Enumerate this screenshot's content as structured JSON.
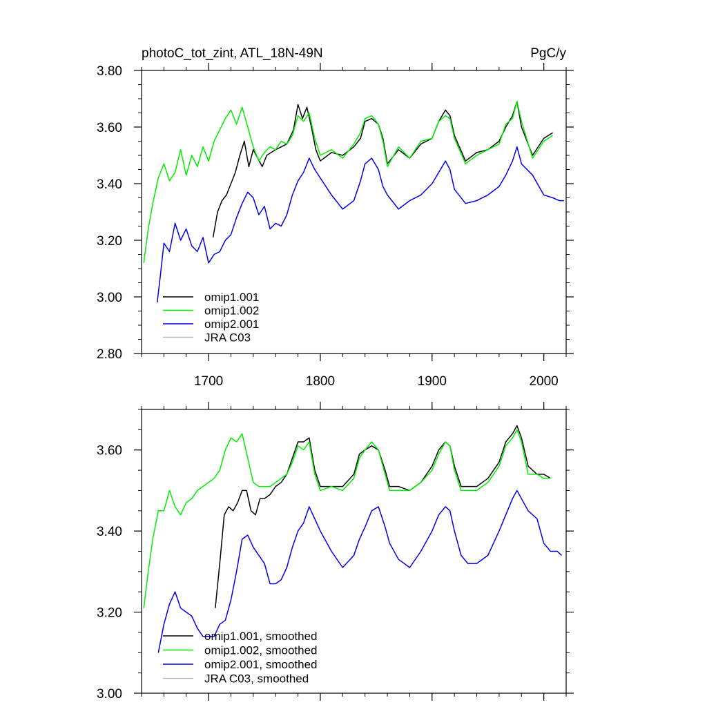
{
  "chart_data": [
    {
      "type": "line",
      "title_left": "photoC_tot_zint, ATL_18N-49N",
      "title_right": "PgC/y",
      "xlabel": "",
      "ylabel": "",
      "xlim": [
        1640,
        2020
      ],
      "ylim": [
        2.8,
        3.8
      ],
      "x_ticks": [
        1700,
        1800,
        1900,
        2000
      ],
      "x_tick_labels": [
        "1700",
        "1800",
        "1900",
        "2000"
      ],
      "y_ticks": [
        2.8,
        3.0,
        3.2,
        3.4,
        3.6,
        3.8
      ],
      "y_tick_labels": [
        "2.80",
        "3.00",
        "3.20",
        "3.40",
        "3.60",
        "3.80"
      ],
      "legend_position": "bottom-left",
      "legend": [
        {
          "label": "omip1.001",
          "color": "#000000"
        },
        {
          "label": "omip1.002",
          "color": "#00ee00"
        },
        {
          "label": "omip2.001",
          "color": "#0000ee"
        },
        {
          "label": "JRA C03",
          "color": "#bbbbbb"
        }
      ],
      "series": [
        {
          "name": "omip1.001",
          "color": "#000000",
          "x": [
            1704,
            1708,
            1712,
            1716,
            1720,
            1724,
            1728,
            1732,
            1736,
            1740,
            1744,
            1748,
            1752,
            1760,
            1770,
            1776,
            1780,
            1784,
            1788,
            1792,
            1796,
            1800,
            1810,
            1820,
            1830,
            1836,
            1840,
            1846,
            1852,
            1856,
            1860,
            1870,
            1880,
            1890,
            1900,
            1906,
            1912,
            1916,
            1920,
            1930,
            1940,
            1950,
            1960,
            1966,
            1972,
            1976,
            1980,
            1990,
            2000,
            2008
          ],
          "y": [
            3.21,
            3.3,
            3.34,
            3.36,
            3.4,
            3.44,
            3.5,
            3.55,
            3.46,
            3.52,
            3.49,
            3.46,
            3.5,
            3.52,
            3.54,
            3.59,
            3.68,
            3.63,
            3.67,
            3.6,
            3.52,
            3.48,
            3.51,
            3.5,
            3.53,
            3.56,
            3.62,
            3.63,
            3.61,
            3.56,
            3.47,
            3.52,
            3.49,
            3.54,
            3.56,
            3.62,
            3.66,
            3.64,
            3.57,
            3.48,
            3.51,
            3.52,
            3.55,
            3.6,
            3.64,
            3.69,
            3.6,
            3.5,
            3.56,
            3.58
          ]
        },
        {
          "name": "omip1.002",
          "color": "#00ee00",
          "x": [
            1642,
            1646,
            1650,
            1655,
            1660,
            1665,
            1670,
            1675,
            1680,
            1685,
            1690,
            1695,
            1700,
            1705,
            1710,
            1715,
            1720,
            1725,
            1730,
            1735,
            1740,
            1745,
            1750,
            1755,
            1760,
            1765,
            1770,
            1775,
            1780,
            1785,
            1790,
            1795,
            1800,
            1810,
            1820,
            1830,
            1836,
            1840,
            1846,
            1852,
            1856,
            1860,
            1870,
            1880,
            1890,
            1900,
            1906,
            1912,
            1916,
            1920,
            1930,
            1940,
            1950,
            1960,
            1966,
            1972,
            1976,
            1980,
            1990,
            2000,
            2008
          ],
          "y": [
            3.12,
            3.24,
            3.33,
            3.42,
            3.47,
            3.41,
            3.44,
            3.52,
            3.43,
            3.5,
            3.46,
            3.53,
            3.48,
            3.55,
            3.59,
            3.63,
            3.66,
            3.61,
            3.67,
            3.6,
            3.53,
            3.48,
            3.51,
            3.53,
            3.52,
            3.55,
            3.54,
            3.57,
            3.64,
            3.62,
            3.65,
            3.56,
            3.5,
            3.52,
            3.49,
            3.54,
            3.58,
            3.63,
            3.64,
            3.61,
            3.55,
            3.46,
            3.53,
            3.49,
            3.55,
            3.56,
            3.62,
            3.64,
            3.63,
            3.56,
            3.47,
            3.5,
            3.52,
            3.54,
            3.61,
            3.63,
            3.69,
            3.62,
            3.49,
            3.55,
            3.57
          ]
        },
        {
          "name": "omip2.001",
          "color": "#0000ee",
          "x": [
            1654,
            1657,
            1660,
            1665,
            1670,
            1675,
            1680,
            1685,
            1690,
            1695,
            1700,
            1705,
            1710,
            1715,
            1720,
            1725,
            1730,
            1735,
            1740,
            1745,
            1750,
            1755,
            1760,
            1765,
            1770,
            1775,
            1780,
            1785,
            1790,
            1795,
            1800,
            1810,
            1820,
            1830,
            1836,
            1840,
            1846,
            1852,
            1856,
            1860,
            1870,
            1880,
            1890,
            1900,
            1906,
            1912,
            1916,
            1920,
            1930,
            1940,
            1950,
            1960,
            1966,
            1972,
            1976,
            1980,
            1990,
            2000,
            2008,
            2014,
            2018
          ],
          "y": [
            2.98,
            3.08,
            3.19,
            3.16,
            3.26,
            3.2,
            3.24,
            3.18,
            3.16,
            3.21,
            3.12,
            3.15,
            3.16,
            3.2,
            3.22,
            3.28,
            3.33,
            3.37,
            3.35,
            3.29,
            3.32,
            3.24,
            3.26,
            3.25,
            3.29,
            3.36,
            3.41,
            3.44,
            3.49,
            3.45,
            3.42,
            3.36,
            3.31,
            3.34,
            3.41,
            3.47,
            3.49,
            3.45,
            3.39,
            3.36,
            3.31,
            3.34,
            3.36,
            3.4,
            3.44,
            3.48,
            3.45,
            3.38,
            3.33,
            3.34,
            3.36,
            3.39,
            3.43,
            3.48,
            3.53,
            3.47,
            3.43,
            3.36,
            3.35,
            3.34,
            3.34
          ]
        }
      ]
    },
    {
      "type": "line",
      "title_left": "",
      "title_right": "",
      "xlabel": "",
      "ylabel": "",
      "xlim": [
        1640,
        2020
      ],
      "ylim": [
        3.0,
        3.7
      ],
      "x_ticks": [
        1700,
        1800,
        1900,
        2000
      ],
      "x_tick_labels": [],
      "y_ticks": [
        3.0,
        3.2,
        3.4,
        3.6
      ],
      "y_tick_labels": [
        "3.00",
        "3.20",
        "3.40",
        "3.60"
      ],
      "legend_position": "bottom-left",
      "legend": [
        {
          "label": "omip1.001, smoothed",
          "color": "#000000"
        },
        {
          "label": "omip1.002, smoothed",
          "color": "#00ee00"
        },
        {
          "label": "omip2.001, smoothed",
          "color": "#0000ee"
        },
        {
          "label": "JRA C03, smoothed",
          "color": "#bbbbbb"
        }
      ],
      "series": [
        {
          "name": "omip1.001, smoothed",
          "color": "#000000",
          "x": [
            1706,
            1710,
            1714,
            1718,
            1722,
            1726,
            1730,
            1734,
            1738,
            1742,
            1746,
            1750,
            1755,
            1760,
            1765,
            1770,
            1775,
            1780,
            1785,
            1790,
            1795,
            1800,
            1810,
            1820,
            1830,
            1835,
            1840,
            1846,
            1852,
            1858,
            1862,
            1870,
            1880,
            1890,
            1900,
            1906,
            1912,
            1916,
            1920,
            1926,
            1932,
            1940,
            1950,
            1960,
            1966,
            1972,
            1976,
            1980,
            1986,
            1994,
            2000,
            2006
          ],
          "y": [
            3.21,
            3.32,
            3.44,
            3.46,
            3.45,
            3.47,
            3.5,
            3.5,
            3.45,
            3.44,
            3.48,
            3.48,
            3.49,
            3.51,
            3.52,
            3.54,
            3.58,
            3.62,
            3.62,
            3.63,
            3.55,
            3.51,
            3.51,
            3.51,
            3.54,
            3.59,
            3.6,
            3.61,
            3.6,
            3.55,
            3.51,
            3.51,
            3.5,
            3.52,
            3.56,
            3.6,
            3.62,
            3.61,
            3.56,
            3.51,
            3.51,
            3.51,
            3.53,
            3.57,
            3.62,
            3.64,
            3.66,
            3.63,
            3.56,
            3.54,
            3.54,
            3.53
          ]
        },
        {
          "name": "omip1.002, smoothed",
          "color": "#00ee00",
          "x": [
            1642,
            1646,
            1650,
            1655,
            1660,
            1665,
            1670,
            1675,
            1680,
            1685,
            1690,
            1695,
            1700,
            1705,
            1710,
            1715,
            1720,
            1725,
            1730,
            1735,
            1740,
            1745,
            1750,
            1755,
            1760,
            1765,
            1770,
            1775,
            1780,
            1785,
            1790,
            1795,
            1800,
            1810,
            1820,
            1830,
            1835,
            1840,
            1846,
            1852,
            1858,
            1862,
            1870,
            1880,
            1890,
            1900,
            1906,
            1912,
            1916,
            1920,
            1926,
            1932,
            1940,
            1950,
            1960,
            1966,
            1972,
            1976,
            1980,
            1986,
            1994,
            2000,
            2006
          ],
          "y": [
            3.21,
            3.3,
            3.38,
            3.45,
            3.45,
            3.5,
            3.46,
            3.44,
            3.47,
            3.48,
            3.5,
            3.51,
            3.52,
            3.53,
            3.55,
            3.6,
            3.63,
            3.62,
            3.64,
            3.58,
            3.52,
            3.51,
            3.51,
            3.51,
            3.52,
            3.53,
            3.54,
            3.57,
            3.61,
            3.6,
            3.62,
            3.54,
            3.5,
            3.51,
            3.5,
            3.53,
            3.58,
            3.6,
            3.62,
            3.6,
            3.54,
            3.5,
            3.5,
            3.5,
            3.52,
            3.55,
            3.59,
            3.62,
            3.61,
            3.55,
            3.5,
            3.5,
            3.5,
            3.52,
            3.56,
            3.61,
            3.63,
            3.65,
            3.62,
            3.54,
            3.54,
            3.53,
            3.53
          ]
        },
        {
          "name": "omip2.001, smoothed",
          "color": "#0000ee",
          "x": [
            1655,
            1660,
            1665,
            1670,
            1675,
            1680,
            1685,
            1690,
            1695,
            1700,
            1705,
            1710,
            1715,
            1720,
            1725,
            1730,
            1735,
            1740,
            1745,
            1750,
            1755,
            1760,
            1765,
            1770,
            1775,
            1780,
            1785,
            1790,
            1795,
            1800,
            1810,
            1820,
            1830,
            1835,
            1840,
            1846,
            1852,
            1858,
            1862,
            1870,
            1880,
            1890,
            1900,
            1906,
            1912,
            1916,
            1920,
            1926,
            1932,
            1940,
            1950,
            1960,
            1966,
            1972,
            1976,
            1980,
            1986,
            1994,
            2000,
            2006,
            2012,
            2016
          ],
          "y": [
            3.1,
            3.17,
            3.22,
            3.25,
            3.21,
            3.2,
            3.19,
            3.16,
            3.14,
            3.14,
            3.14,
            3.17,
            3.18,
            3.23,
            3.3,
            3.38,
            3.39,
            3.36,
            3.34,
            3.32,
            3.27,
            3.27,
            3.28,
            3.31,
            3.36,
            3.4,
            3.42,
            3.46,
            3.43,
            3.4,
            3.35,
            3.31,
            3.34,
            3.38,
            3.41,
            3.45,
            3.46,
            3.41,
            3.37,
            3.33,
            3.31,
            3.35,
            3.4,
            3.44,
            3.46,
            3.45,
            3.4,
            3.34,
            3.32,
            3.32,
            3.34,
            3.4,
            3.44,
            3.48,
            3.5,
            3.48,
            3.45,
            3.43,
            3.37,
            3.35,
            3.35,
            3.34
          ]
        }
      ]
    }
  ]
}
